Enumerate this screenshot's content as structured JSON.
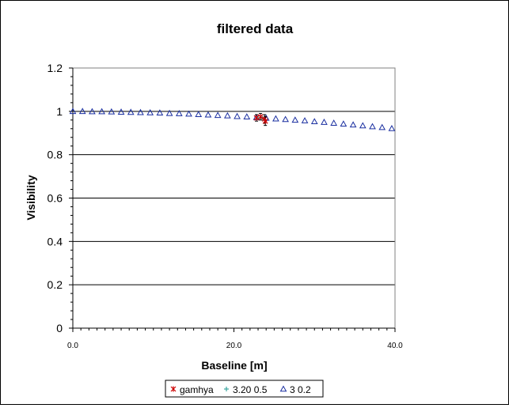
{
  "chart_data": {
    "type": "scatter",
    "title": "filtered data",
    "xlabel": "Baseline [m]",
    "ylabel": "Visibility",
    "xlim": [
      0,
      40
    ],
    "ylim": [
      0,
      1.2
    ],
    "x_ticks": [
      0,
      20,
      40
    ],
    "x_tick_labels": [
      "0.0",
      "20.0",
      "40.0"
    ],
    "y_ticks": [
      0,
      0.2,
      0.4,
      0.6,
      0.8,
      1,
      1.2
    ],
    "y_tick_labels": [
      "0",
      "0.2",
      "0.4",
      "0.6",
      "0.8",
      "1",
      "1.2"
    ],
    "grid": "horizontal major gridlines",
    "legend_position": "bottom",
    "series": [
      {
        "name": "gamhya",
        "marker": "asterisk",
        "color": "#cc0000",
        "x": [
          22.8,
          23.3,
          23.8,
          23.9
        ],
        "y": [
          0.97,
          0.975,
          0.965,
          0.955
        ],
        "error": [
          0.015,
          0.015,
          0.02,
          0.02
        ]
      },
      {
        "name": "3.20 0.5",
        "marker": "plus",
        "color": "#3aa7a0",
        "x": [
          23.0,
          23.5
        ],
        "y": [
          0.97,
          0.968
        ]
      },
      {
        "name": "3 0.2",
        "marker": "triangle",
        "color": "#1a2fa0",
        "x": [
          0,
          1.2,
          2.4,
          3.6,
          4.8,
          6.0,
          7.2,
          8.4,
          9.6,
          10.8,
          12.0,
          13.2,
          14.4,
          15.6,
          16.8,
          18.0,
          19.2,
          20.4,
          21.6,
          22.8,
          24.0,
          25.2,
          26.4,
          27.6,
          28.8,
          30.0,
          31.2,
          32.4,
          33.6,
          34.8,
          36.0,
          37.2,
          38.4,
          39.6
        ],
        "y": [
          1.0,
          1.0,
          0.999,
          0.999,
          0.998,
          0.997,
          0.996,
          0.995,
          0.994,
          0.993,
          0.991,
          0.99,
          0.988,
          0.986,
          0.984,
          0.982,
          0.98,
          0.977,
          0.975,
          0.972,
          0.969,
          0.966,
          0.963,
          0.96,
          0.957,
          0.953,
          0.95,
          0.946,
          0.942,
          0.938,
          0.934,
          0.93,
          0.926,
          0.921
        ]
      }
    ]
  }
}
